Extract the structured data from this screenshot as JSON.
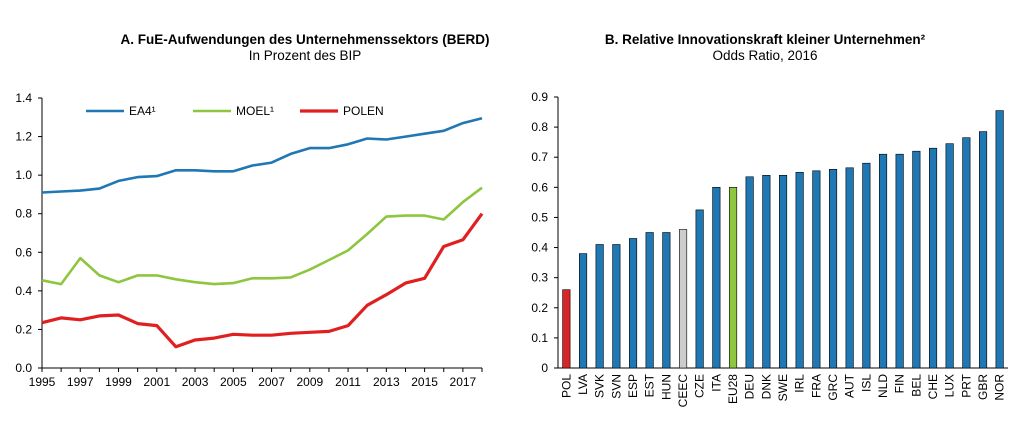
{
  "chart_data": [
    {
      "type": "line",
      "title": "A. FuE-Aufwendungen des Unternehmenssektors (BERD)",
      "subtitle": "In Prozent des BIP",
      "xlabel": "",
      "ylabel": "",
      "ylim": [
        0,
        1.4
      ],
      "yticks": [
        "0.0",
        "0.2",
        "0.4",
        "0.6",
        "0.8",
        "1.0",
        "1.2",
        "1.4"
      ],
      "xticks": [
        "1995",
        "1997",
        "1999",
        "2001",
        "2003",
        "2005",
        "2007",
        "2009",
        "2011",
        "2013",
        "2015",
        "2017"
      ],
      "x": [
        1995,
        1996,
        1997,
        1998,
        1999,
        2000,
        2001,
        2002,
        2003,
        2004,
        2005,
        2006,
        2007,
        2008,
        2009,
        2010,
        2011,
        2012,
        2013,
        2014,
        2015,
        2016,
        2017,
        2018
      ],
      "grid": false,
      "legend_position": "top",
      "series": [
        {
          "name": "EA4¹",
          "color": "#1f77b4",
          "values": [
            0.91,
            0.915,
            0.92,
            0.93,
            0.97,
            0.99,
            0.995,
            1.025,
            1.025,
            1.02,
            1.02,
            1.05,
            1.065,
            1.11,
            1.14,
            1.14,
            1.16,
            1.19,
            1.185,
            1.2,
            1.215,
            1.23,
            1.27,
            1.295
          ]
        },
        {
          "name": "MOEL¹",
          "color": "#8dc63f",
          "values": [
            0.455,
            0.435,
            0.57,
            0.48,
            0.445,
            0.48,
            0.48,
            0.46,
            0.445,
            0.435,
            0.44,
            0.465,
            0.465,
            0.47,
            0.51,
            0.56,
            0.61,
            0.695,
            0.785,
            0.79,
            0.79,
            0.77,
            0.86,
            0.935
          ]
        },
        {
          "name": "POLEN",
          "color": "#e02020",
          "values": [
            0.235,
            0.26,
            0.25,
            0.27,
            0.275,
            0.23,
            0.22,
            0.11,
            0.145,
            0.155,
            0.175,
            0.17,
            0.17,
            0.18,
            0.185,
            0.19,
            0.22,
            0.325,
            0.38,
            0.44,
            0.465,
            0.63,
            0.665,
            0.8
          ]
        }
      ]
    },
    {
      "type": "bar",
      "title": "B. Relative Innovationskraft kleiner Unternehmen²",
      "subtitle": "Odds Ratio, 2016",
      "xlabel": "",
      "ylabel": "",
      "ylim": [
        0,
        0.9
      ],
      "yticks": [
        "0",
        "0.1",
        "0.2",
        "0.3",
        "0.4",
        "0.5",
        "0.6",
        "0.7",
        "0.8",
        "0.9"
      ],
      "grid": false,
      "categories": [
        "POL",
        "LVA",
        "SVK",
        "SVN",
        "ESP",
        "EST",
        "HUN",
        "CEEC",
        "CZE",
        "ITA",
        "EU28",
        "DEU",
        "DNK",
        "SWE",
        "IRL",
        "FRA",
        "GRC",
        "AUT",
        "ISL",
        "NLD",
        "FIN",
        "BEL",
        "CHE",
        "LUX",
        "PRT",
        "GBR",
        "NOR"
      ],
      "values": [
        0.26,
        0.38,
        0.41,
        0.41,
        0.43,
        0.45,
        0.45,
        0.46,
        0.525,
        0.6,
        0.6,
        0.635,
        0.64,
        0.64,
        0.65,
        0.655,
        0.66,
        0.665,
        0.68,
        0.71,
        0.71,
        0.72,
        0.73,
        0.745,
        0.765,
        0.785,
        0.855
      ],
      "colors": [
        "#d62728",
        "#1f77b4",
        "#1f77b4",
        "#1f77b4",
        "#1f77b4",
        "#1f77b4",
        "#1f77b4",
        "#cccccc",
        "#1f77b4",
        "#1f77b4",
        "#8dc63f",
        "#1f77b4",
        "#1f77b4",
        "#1f77b4",
        "#1f77b4",
        "#1f77b4",
        "#1f77b4",
        "#1f77b4",
        "#1f77b4",
        "#1f77b4",
        "#1f77b4",
        "#1f77b4",
        "#1f77b4",
        "#1f77b4",
        "#1f77b4",
        "#1f77b4",
        "#1f77b4"
      ],
      "bar_outline_color": "#000000"
    }
  ]
}
